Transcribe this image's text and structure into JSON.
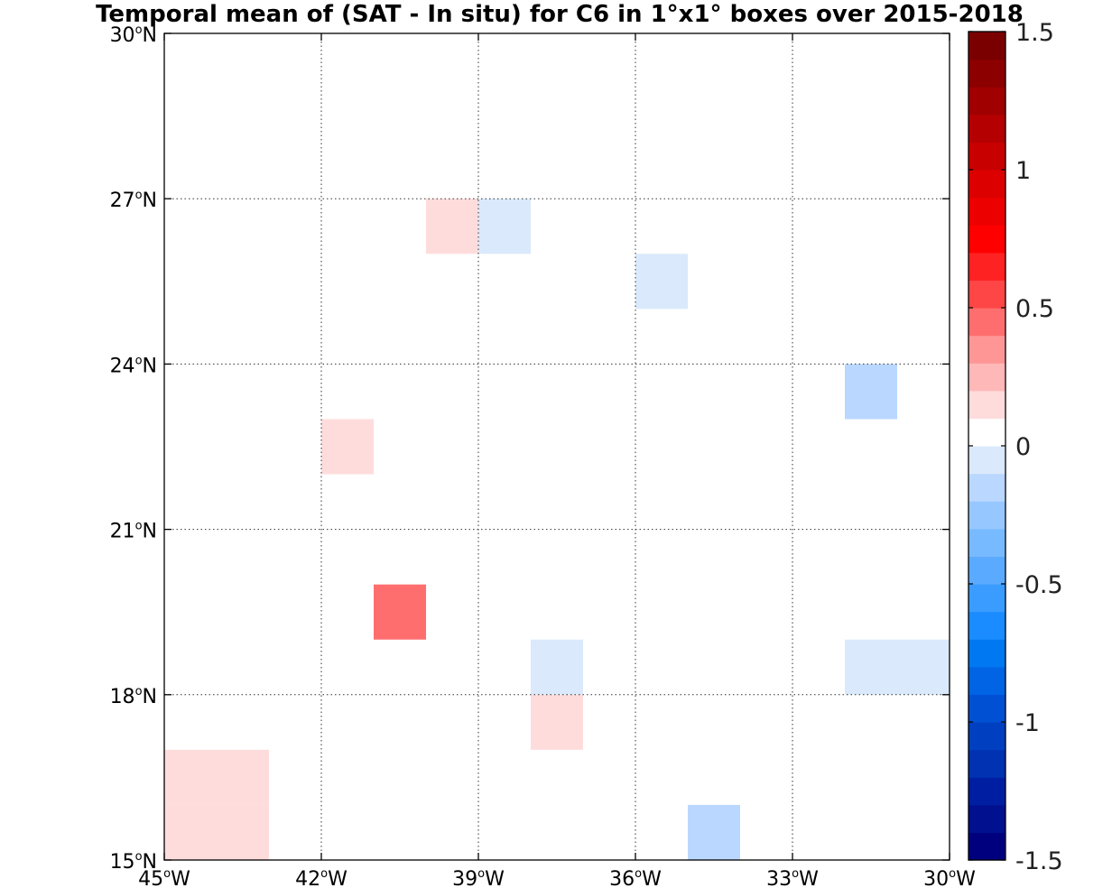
{
  "chart_data": {
    "type": "heatmap",
    "title": "Temporal mean of (SAT - In situ) for C6 in 1°x1° boxes over 2015-2018",
    "xlim": [
      -45,
      -30
    ],
    "ylim": [
      15,
      30
    ],
    "x_ticks": [
      {
        "value": -45,
        "num": "45",
        "deg": "o",
        "hemi": "W"
      },
      {
        "value": -42,
        "num": "42",
        "deg": "o",
        "hemi": "W"
      },
      {
        "value": -39,
        "num": "39",
        "deg": "o",
        "hemi": "W"
      },
      {
        "value": -36,
        "num": "36",
        "deg": "o",
        "hemi": "W"
      },
      {
        "value": -33,
        "num": "33",
        "deg": "o",
        "hemi": "W"
      },
      {
        "value": -30,
        "num": "30",
        "deg": "o",
        "hemi": "W"
      }
    ],
    "y_ticks": [
      {
        "value": 15,
        "num": "15",
        "deg": "o",
        "hemi": "N"
      },
      {
        "value": 18,
        "num": "18",
        "deg": "o",
        "hemi": "N"
      },
      {
        "value": 21,
        "num": "21",
        "deg": "o",
        "hemi": "N"
      },
      {
        "value": 24,
        "num": "24",
        "deg": "o",
        "hemi": "N"
      },
      {
        "value": 27,
        "num": "27",
        "deg": "o",
        "hemi": "N"
      },
      {
        "value": 30,
        "num": "30",
        "deg": "o",
        "hemi": "N"
      }
    ],
    "grid": true,
    "colorbar": {
      "range": [
        -1.5,
        1.5
      ],
      "step": 0.1,
      "ticks": [
        {
          "value": 1.5,
          "label": "1.5"
        },
        {
          "value": 1,
          "label": "1"
        },
        {
          "value": 0.5,
          "label": "0.5"
        },
        {
          "value": 0,
          "label": "0"
        },
        {
          "value": -0.5,
          "label": "-0.5"
        },
        {
          "value": -1,
          "label": "-1"
        },
        {
          "value": -1.5,
          "label": "-1.5"
        }
      ],
      "colors": [
        "#00007f",
        "#00108f",
        "#001ea2",
        "#0032b2",
        "#0040c0",
        "#0050d4",
        "#0064e4",
        "#0078f2",
        "#1a8cff",
        "#3a9cff",
        "#5aaaff",
        "#78baff",
        "#96c8ff",
        "#bad8ff",
        "#dae9fb",
        "#ffffff",
        "#ffdcdc",
        "#ffb8b8",
        "#ff9696",
        "#ff6e6e",
        "#ff4646",
        "#ff2222",
        "#ff0000",
        "#ec0000",
        "#dc0000",
        "#c80000",
        "#b40000",
        "#a00000",
        "#8c0000",
        "#7a0000"
      ]
    },
    "cells": [
      {
        "lon": -37,
        "lat": 29,
        "value": 0.05
      },
      {
        "lon": -45,
        "lat": 27,
        "value": 0.05
      },
      {
        "lon": -39,
        "lat": 27,
        "value": 0.05
      },
      {
        "lon": -37,
        "lat": 27,
        "value": 0.05
      },
      {
        "lon": -45,
        "lat": 26,
        "value": 0.05
      },
      {
        "lon": -40,
        "lat": 26,
        "value": 0.15
      },
      {
        "lon": -39,
        "lat": 26,
        "value": -0.05
      },
      {
        "lon": -36,
        "lat": 25,
        "value": -0.05
      },
      {
        "lon": -42,
        "lat": 23,
        "value": 0.05
      },
      {
        "lon": -32,
        "lat": 23,
        "value": -0.15
      },
      {
        "lon": -44,
        "lat": 22,
        "value": 0.05
      },
      {
        "lon": -43,
        "lat": 22,
        "value": 0.05
      },
      {
        "lon": -42,
        "lat": 22,
        "value": 0.15
      },
      {
        "lon": -43,
        "lat": 21,
        "value": 0.05
      },
      {
        "lon": -40,
        "lat": 21,
        "value": 0.05
      },
      {
        "lon": -41,
        "lat": 20,
        "value": 0.05
      },
      {
        "lon": -45,
        "lat": 19,
        "value": 0.05
      },
      {
        "lon": -41,
        "lat": 19,
        "value": 0.45
      },
      {
        "lon": -40,
        "lat": 19,
        "value": 0.05
      },
      {
        "lon": -38,
        "lat": 18,
        "value": -0.05
      },
      {
        "lon": -34,
        "lat": 18,
        "value": 0.05
      },
      {
        "lon": -32,
        "lat": 18,
        "value": -0.05
      },
      {
        "lon": -31,
        "lat": 18,
        "value": -0.05
      },
      {
        "lon": -38,
        "lat": 17,
        "value": 0.15
      },
      {
        "lon": -32,
        "lat": 17,
        "value": 0.05
      },
      {
        "lon": -33,
        "lat": 16,
        "value": 0.05
      },
      {
        "lon": -45,
        "lat": 16,
        "value": 0.15
      },
      {
        "lon": -44,
        "lat": 16,
        "value": 0.15
      },
      {
        "lon": -45,
        "lat": 15,
        "value": 0.15
      },
      {
        "lon": -44,
        "lat": 15,
        "value": 0.15
      },
      {
        "lon": -35,
        "lat": 15,
        "value": -0.15
      },
      {
        "lon": -34,
        "lat": 15,
        "value": 0.05
      },
      {
        "lon": -32,
        "lat": 15,
        "value": 0.05
      }
    ]
  }
}
